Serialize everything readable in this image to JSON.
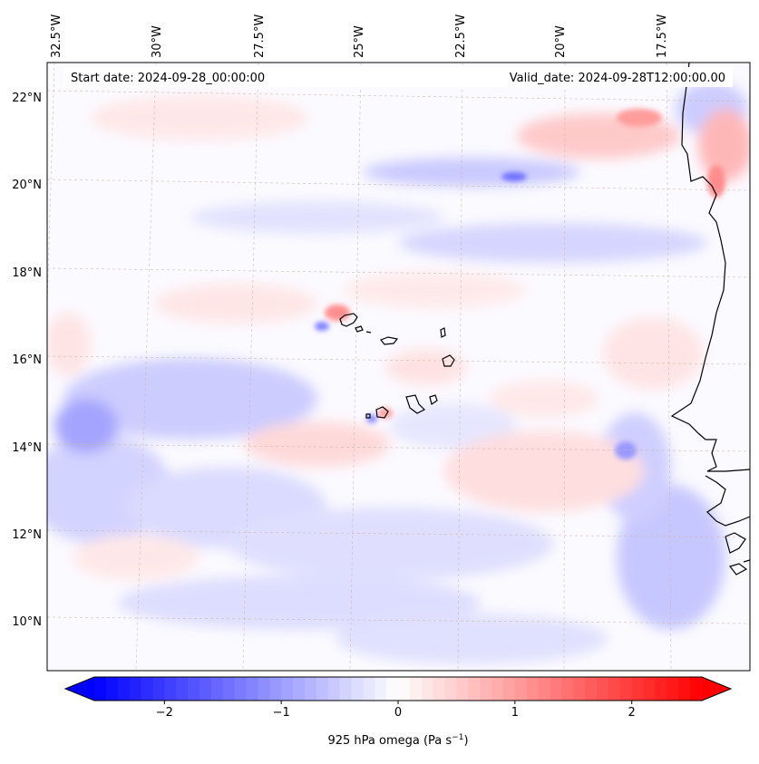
{
  "map": {
    "start_date_label": "Start date: 2024-09-28_00:00:00",
    "valid_date_label": "Valid_date: 2024-09-28T12:00:00.00",
    "lon_labels": [
      "32.5°W",
      "30°W",
      "27.5°W",
      "25°W",
      "22.5°W",
      "20°W",
      "17.5°W"
    ],
    "lat_labels": [
      "22°N",
      "20°N",
      "18°N",
      "16°N",
      "14°N",
      "12°N",
      "10°N"
    ],
    "colormap": "bwr",
    "field_colors": {
      "negative": "#0000ff",
      "zero": "#ffffff",
      "positive": "#ff0000",
      "coastline": "#000000"
    },
    "gridlines": true
  },
  "colorbar": {
    "ticks": [
      "−2",
      "−1",
      "0",
      "1",
      "2"
    ],
    "label_main": "925 hPa omega (Pa s",
    "label_exp": "−1",
    "label_close": ")",
    "range": [
      -2.6,
      2.6
    ],
    "extend": "both"
  }
}
